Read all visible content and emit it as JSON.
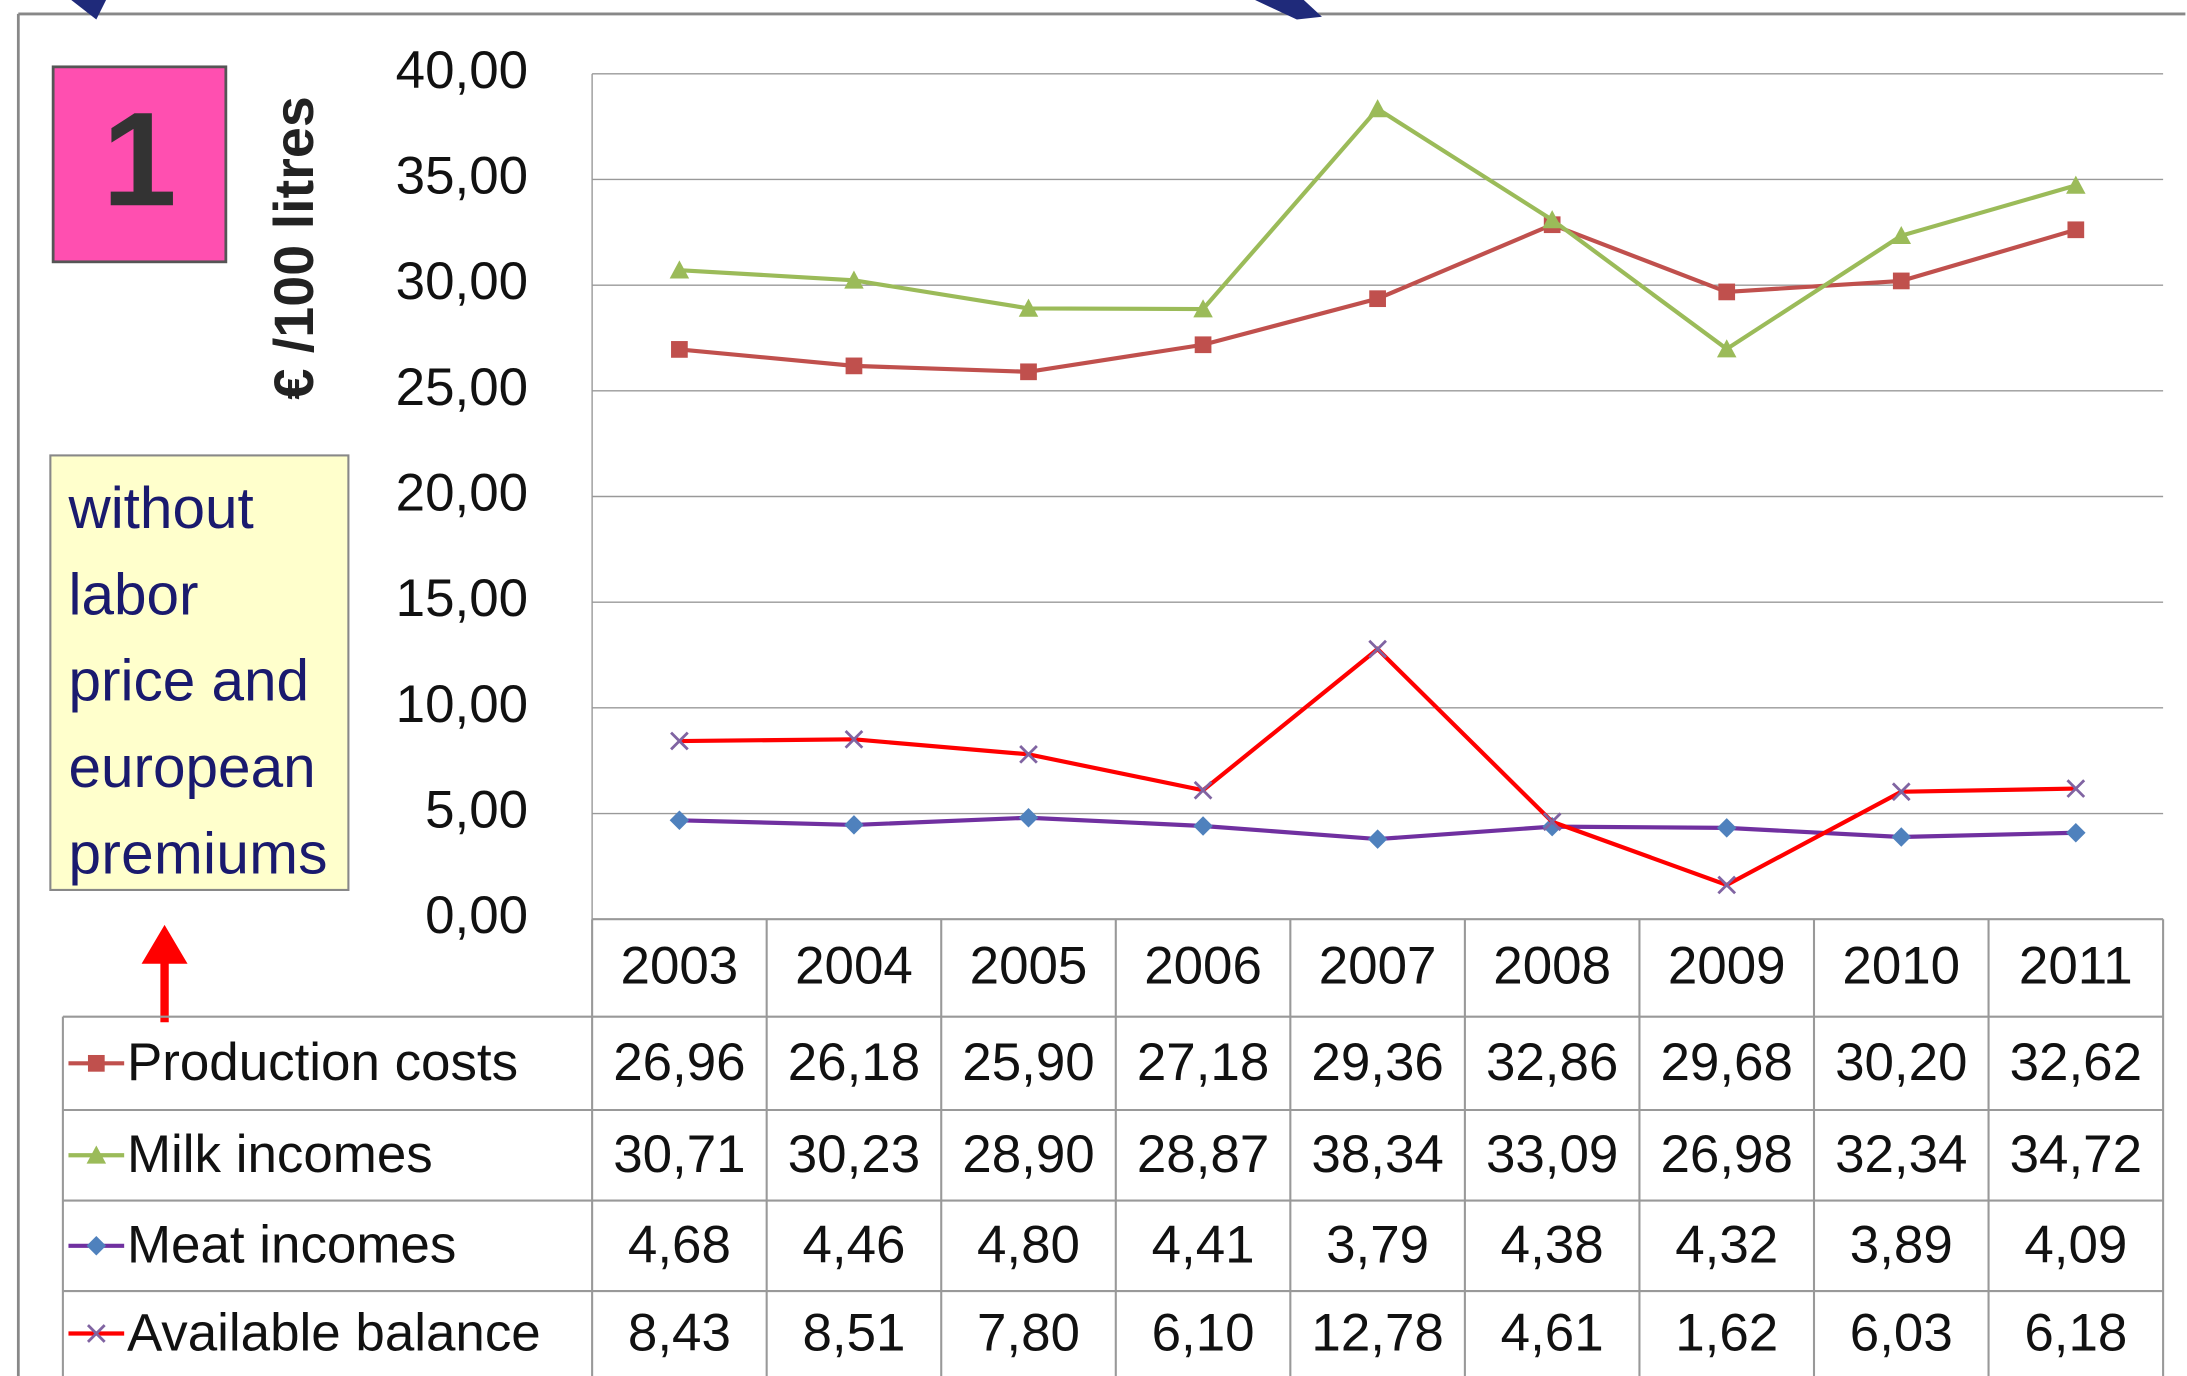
{
  "chart_data": {
    "type": "line",
    "badge": "1",
    "y_label": "€ /100 litres",
    "annotation": [
      "without",
      "labor",
      "price and",
      "european",
      "premiums"
    ],
    "categories": [
      "2003",
      "2004",
      "2005",
      "2006",
      "2007",
      "2008",
      "2009",
      "2010",
      "2011"
    ],
    "ylim": [
      0,
      40
    ],
    "yticks": [
      {
        "value": 0,
        "label": "0,00"
      },
      {
        "value": 5,
        "label": "5,00"
      },
      {
        "value": 10,
        "label": "10,00"
      },
      {
        "value": 15,
        "label": "15,00"
      },
      {
        "value": 20,
        "label": "20,00"
      },
      {
        "value": 25,
        "label": "25,00"
      },
      {
        "value": 30,
        "label": "30,00"
      },
      {
        "value": 35,
        "label": "35,00"
      },
      {
        "value": 40,
        "label": "40,00"
      }
    ],
    "grid": true,
    "series": [
      {
        "name": "Production costs",
        "color": "#c0504d",
        "marker": "square",
        "marker_color": "#c0504d",
        "values": [
          26.96,
          26.18,
          25.9,
          27.18,
          29.36,
          32.86,
          29.68,
          30.2,
          32.62
        ],
        "value_labels": [
          "26,96",
          "26,18",
          "25,90",
          "27,18",
          "29,36",
          "32,86",
          "29,68",
          "30,20",
          "32,62"
        ]
      },
      {
        "name": "Milk incomes",
        "color": "#9bbb59",
        "marker": "triangle",
        "marker_color": "#9bbb59",
        "values": [
          30.71,
          30.23,
          28.9,
          28.87,
          38.34,
          33.09,
          26.98,
          32.34,
          34.72
        ],
        "value_labels": [
          "30,71",
          "30,23",
          "28,90",
          "28,87",
          "38,34",
          "33,09",
          "26,98",
          "32,34",
          "34,72"
        ]
      },
      {
        "name": "Meat incomes",
        "color": "#7030a0",
        "marker": "diamond",
        "marker_color": "#4f81bd",
        "values": [
          4.68,
          4.46,
          4.8,
          4.41,
          3.79,
          4.38,
          4.32,
          3.89,
          4.09
        ],
        "value_labels": [
          "4,68",
          "4,46",
          "4,80",
          "4,41",
          "3,79",
          "4,38",
          "4,32",
          "3,89",
          "4,09"
        ]
      },
      {
        "name": "Available balance",
        "color": "#ff0000",
        "marker": "cross",
        "marker_color": "#8064a2",
        "values": [
          8.43,
          8.51,
          7.8,
          6.1,
          12.78,
          4.61,
          1.62,
          6.03,
          6.18
        ],
        "value_labels": [
          "8,43",
          "8,51",
          "7,80",
          "6,10",
          "12,78",
          "4,61",
          "1,62",
          "6,03",
          "6,18"
        ]
      }
    ]
  }
}
